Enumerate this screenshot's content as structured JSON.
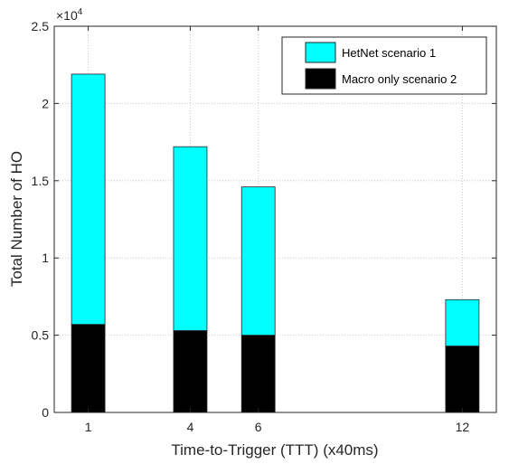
{
  "chart_data": {
    "type": "bar",
    "stacked": true,
    "x": [
      1,
      4,
      6,
      12
    ],
    "xticks": [
      "1",
      "4",
      "6",
      "12"
    ],
    "xlim": [
      0,
      13
    ],
    "ylim": [
      0,
      25000
    ],
    "yticks": [
      0,
      5000,
      10000,
      15000,
      20000,
      25000
    ],
    "ytick_labels": [
      "0",
      "0.5",
      "1",
      "1.5",
      "2",
      "2.5"
    ],
    "y_exponent_base": "×10",
    "y_exponent_power": "4",
    "xlabel": "Time-to-Trigger (TTT) (x40ms)",
    "ylabel": "Total Number of HO",
    "grid": true,
    "legend_position": "top-right",
    "series": [
      {
        "name": "Macro only scenario 2",
        "color": "#000000",
        "values": [
          5700,
          5300,
          5000,
          4300
        ]
      },
      {
        "name": "HetNet scenario 1",
        "color": "#00FFFF",
        "values": [
          16200,
          11900,
          9600,
          3000
        ]
      }
    ],
    "totals": [
      21900,
      17200,
      14600,
      7300
    ]
  }
}
